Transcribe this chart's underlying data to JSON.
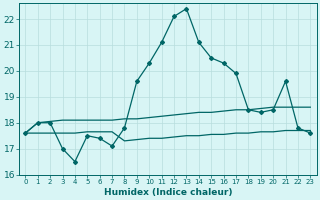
{
  "xlabel": "Humidex (Indice chaleur)",
  "x": [
    0,
    1,
    2,
    3,
    4,
    5,
    6,
    7,
    8,
    9,
    10,
    11,
    12,
    13,
    14,
    15,
    16,
    17,
    18,
    19,
    20,
    21,
    22,
    23
  ],
  "line1": [
    17.6,
    18.0,
    18.0,
    17.0,
    16.5,
    17.5,
    17.4,
    17.1,
    17.8,
    19.6,
    20.3,
    21.1,
    22.1,
    22.4,
    21.1,
    20.5,
    20.3,
    19.9,
    18.5,
    18.4,
    18.5,
    19.6,
    17.8,
    17.6
  ],
  "line2": [
    17.6,
    18.0,
    18.05,
    18.1,
    18.1,
    18.1,
    18.1,
    18.1,
    18.15,
    18.15,
    18.2,
    18.25,
    18.3,
    18.35,
    18.4,
    18.4,
    18.45,
    18.5,
    18.5,
    18.55,
    18.6,
    18.6,
    18.6,
    18.6
  ],
  "line3": [
    17.6,
    17.6,
    17.6,
    17.6,
    17.6,
    17.65,
    17.65,
    17.65,
    17.3,
    17.35,
    17.4,
    17.4,
    17.45,
    17.5,
    17.5,
    17.55,
    17.55,
    17.6,
    17.6,
    17.65,
    17.65,
    17.7,
    17.7,
    17.7
  ],
  "line_color": "#006666",
  "bg_color": "#d8f5f5",
  "grid_color": "#b8dede",
  "axis_color": "#006666",
  "ylim": [
    16.0,
    22.6
  ],
  "yticks": [
    16,
    17,
    18,
    19,
    20,
    21,
    22
  ],
  "xlim": [
    -0.5,
    23.5
  ]
}
